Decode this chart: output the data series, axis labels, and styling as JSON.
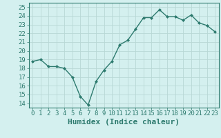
{
  "x": [
    0,
    1,
    2,
    3,
    4,
    5,
    6,
    7,
    8,
    9,
    10,
    11,
    12,
    13,
    14,
    15,
    16,
    17,
    18,
    19,
    20,
    21,
    22,
    23
  ],
  "y": [
    18.8,
    19.0,
    18.2,
    18.2,
    18.0,
    17.0,
    14.8,
    13.8,
    16.5,
    17.8,
    18.8,
    20.7,
    21.2,
    22.5,
    23.8,
    23.8,
    24.7,
    23.9,
    23.9,
    23.5,
    24.1,
    23.2,
    22.9,
    22.2
  ],
  "xlim": [
    -0.5,
    23.5
  ],
  "ylim": [
    13.5,
    25.5
  ],
  "yticks": [
    14,
    15,
    16,
    17,
    18,
    19,
    20,
    21,
    22,
    23,
    24,
    25
  ],
  "xticks": [
    0,
    1,
    2,
    3,
    4,
    5,
    6,
    7,
    8,
    9,
    10,
    11,
    12,
    13,
    14,
    15,
    16,
    17,
    18,
    19,
    20,
    21,
    22,
    23
  ],
  "xlabel": "Humidex (Indice chaleur)",
  "line_color": "#2d7a6e",
  "marker": "D",
  "marker_size": 2.0,
  "bg_color": "#d4f0ef",
  "grid_color": "#b8d8d5",
  "tick_fontsize": 6.5,
  "xlabel_fontsize": 8,
  "line_width": 1.0,
  "spine_color": "#2d7a6e"
}
